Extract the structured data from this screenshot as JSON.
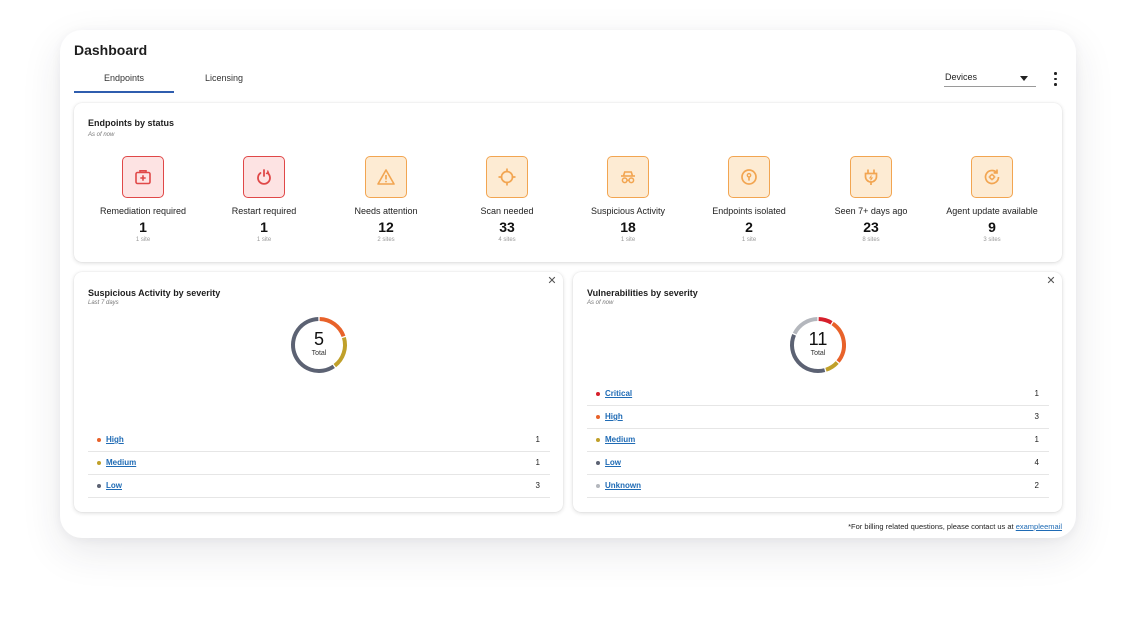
{
  "header": {
    "title": "Dashboard"
  },
  "tabs": [
    {
      "label": "Endpoints",
      "active": true
    },
    {
      "label": "Licensing",
      "active": false
    }
  ],
  "filter": {
    "selected": "Devices"
  },
  "status_card": {
    "title": "Endpoints by status",
    "subtitle": "As of now",
    "items": [
      {
        "label": "Remediation required",
        "count": "1",
        "sites": "1 site",
        "icon": "medical-kit-icon",
        "tone": "red"
      },
      {
        "label": "Restart required",
        "count": "1",
        "sites": "1 site",
        "icon": "power-icon",
        "tone": "red"
      },
      {
        "label": "Needs attention",
        "count": "12",
        "sites": "2 sites",
        "icon": "warning-icon",
        "tone": "orange"
      },
      {
        "label": "Scan needed",
        "count": "33",
        "sites": "4 sites",
        "icon": "crosshair-icon",
        "tone": "orange"
      },
      {
        "label": "Suspicious Activity",
        "count": "18",
        "sites": "1 site",
        "icon": "spy-icon",
        "tone": "orange"
      },
      {
        "label": "Endpoints isolated",
        "count": "2",
        "sites": "1 site",
        "icon": "keyhole-icon",
        "tone": "orange"
      },
      {
        "label": "Seen 7+ days ago",
        "count": "23",
        "sites": "8 sites",
        "icon": "plug-icon",
        "tone": "orange"
      },
      {
        "label": "Agent update available",
        "count": "9",
        "sites": "3 sites",
        "icon": "update-icon",
        "tone": "orange"
      }
    ]
  },
  "suspicious_card": {
    "title": "Suspicious Activity by severity",
    "subtitle": "Last 7 days",
    "total": "5",
    "total_label": "Total",
    "rows": [
      {
        "label": "High",
        "value": "1",
        "color": "#e8622a"
      },
      {
        "label": "Medium",
        "value": "1",
        "color": "#c0a02a"
      },
      {
        "label": "Low",
        "value": "3",
        "color": "#5c6273"
      }
    ]
  },
  "vuln_card": {
    "title": "Vulnerabilities by severity",
    "subtitle": "As of now",
    "total": "11",
    "total_label": "Total",
    "rows": [
      {
        "label": "Critical",
        "value": "1",
        "color": "#d61f2b"
      },
      {
        "label": "High",
        "value": "3",
        "color": "#e8622a"
      },
      {
        "label": "Medium",
        "value": "1",
        "color": "#c0a02a"
      },
      {
        "label": "Low",
        "value": "4",
        "color": "#5c6273"
      },
      {
        "label": "Unknown",
        "value": "2",
        "color": "#b4b7bd"
      }
    ]
  },
  "footer": {
    "text": "*For billing related questions, please contact us at ",
    "link": "exampleemail"
  },
  "colors": {
    "accent": "#2f5dae",
    "link": "#1f6bb5",
    "alert_red": "#e04848",
    "alert_orange": "#f2a551"
  }
}
